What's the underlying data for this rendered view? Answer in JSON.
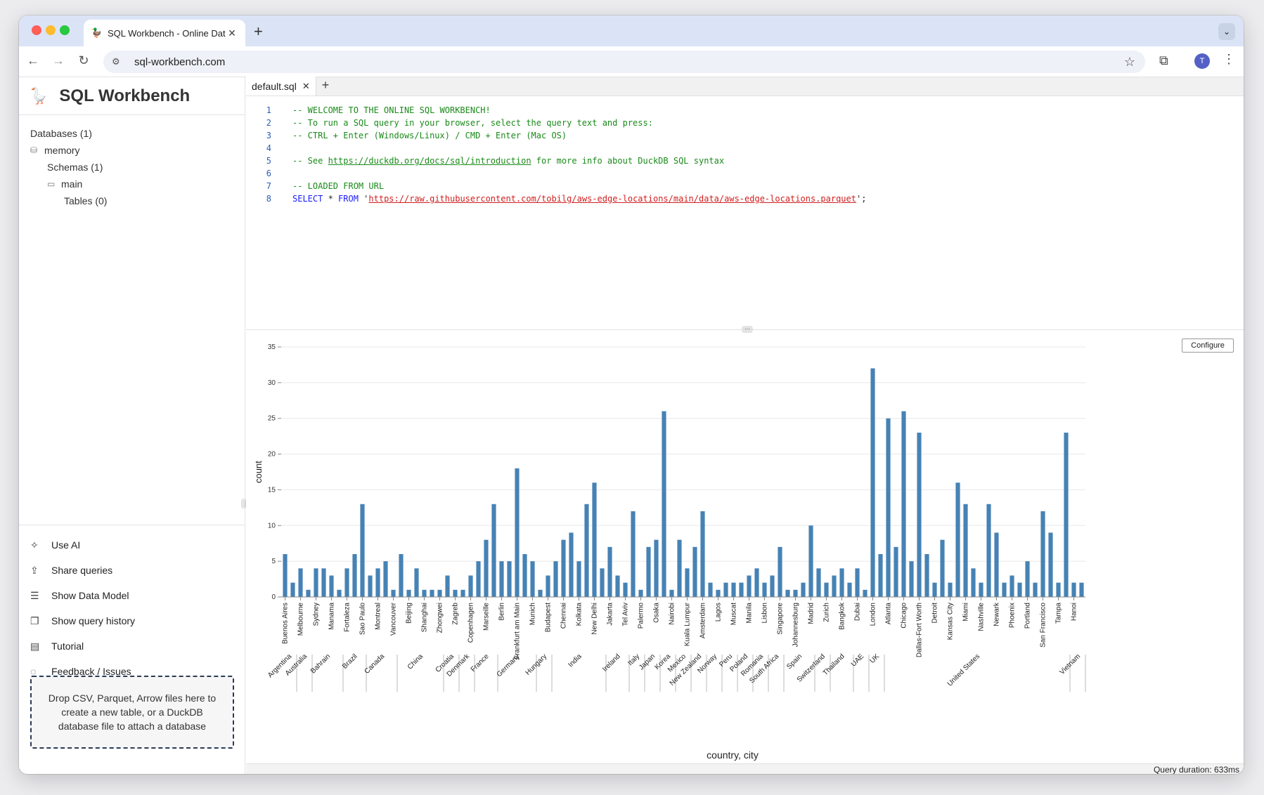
{
  "browser": {
    "tab_title": "SQL Workbench - Online Data",
    "url": "sql-workbench.com"
  },
  "sidebar": {
    "app_title": "SQL Workbench",
    "tree": {
      "databases": "Databases (1)",
      "memory": "memory",
      "schemas": "Schemas (1)",
      "main": "main",
      "tables": "Tables (0)"
    },
    "actions": [
      {
        "label": "Use AI",
        "icon": "wand-icon"
      },
      {
        "label": "Share queries",
        "icon": "share-icon"
      },
      {
        "label": "Show Data Model",
        "icon": "data-model-icon"
      },
      {
        "label": "Show query history",
        "icon": "history-icon"
      },
      {
        "label": "Tutorial",
        "icon": "document-icon"
      },
      {
        "label": "Feedback / Issues",
        "icon": "chat-icon"
      }
    ],
    "dropzone": "Drop CSV, Parquet, Arrow files here to create a new table, or a DuckDB database file to attach a database"
  },
  "editor": {
    "tab": "default.sql",
    "lines": {
      "l1": "-- WELCOME TO THE ONLINE SQL WORKBENCH!",
      "l2": "-- To run a SQL query in your browser, select the query text and press:",
      "l3": "-- CTRL + Enter (Windows/Linux) / CMD + Enter (Mac OS)",
      "l5a": "-- See ",
      "l5link": "https://duckdb.org/docs/sql/introduction",
      "l5b": " for more info about DuckDB SQL syntax",
      "l7": "-- LOADED FROM URL",
      "l8kw1": "SELECT",
      "l8mid": " * ",
      "l8kw2": "FROM",
      "l8q1": " '",
      "l8url": "https://raw.githubusercontent.com/tobilg/aws-edge-locations/main/data/aws-edge-locations.parquet",
      "l8q2": "';"
    }
  },
  "chart": {
    "configure_label": "Configure",
    "bar_color": "#4682b4"
  },
  "status": {
    "duration": "Query duration: 633ms"
  },
  "chart_data": {
    "type": "bar",
    "xlabel": "country, city",
    "ylabel": "count",
    "ylim": [
      0,
      35
    ],
    "yticks": [
      0,
      5,
      10,
      15,
      20,
      25,
      30,
      35
    ],
    "grid": true,
    "values": [
      6,
      2,
      4,
      1,
      4,
      4,
      3,
      1,
      4,
      6,
      13,
      3,
      4,
      5,
      1,
      6,
      1,
      4,
      1,
      1,
      1,
      3,
      1,
      1,
      3,
      5,
      8,
      13,
      5,
      5,
      18,
      6,
      5,
      1,
      3,
      5,
      8,
      9,
      5,
      13,
      16,
      4,
      7,
      3,
      2,
      12,
      1,
      7,
      8,
      26,
      1,
      8,
      4,
      7,
      12,
      2,
      1,
      2,
      2,
      2,
      3,
      4,
      2,
      3,
      7,
      1,
      1,
      2,
      10,
      4,
      2,
      3,
      4,
      2,
      4,
      1,
      32,
      6,
      25,
      7,
      26,
      5,
      23,
      6,
      2,
      8,
      2,
      16,
      13,
      4,
      2,
      13,
      9,
      2,
      3,
      2,
      5,
      2,
      12,
      9,
      2,
      23,
      2,
      2
    ],
    "labeled_cities": [
      {
        "index": 0,
        "city": "Buenos Aires"
      },
      {
        "index": 2,
        "city": "Melbourne"
      },
      {
        "index": 4,
        "city": "Sydney"
      },
      {
        "index": 6,
        "city": "Manama"
      },
      {
        "index": 8,
        "city": "Fortaleza"
      },
      {
        "index": 10,
        "city": "Sao Paulo"
      },
      {
        "index": 12,
        "city": "Montreal"
      },
      {
        "index": 14,
        "city": "Vancouver"
      },
      {
        "index": 16,
        "city": "Beijing"
      },
      {
        "index": 18,
        "city": "Shanghai"
      },
      {
        "index": 20,
        "city": "Zhongwei"
      },
      {
        "index": 22,
        "city": "Zagreb"
      },
      {
        "index": 24,
        "city": "Copenhagen"
      },
      {
        "index": 26,
        "city": "Marseille"
      },
      {
        "index": 28,
        "city": "Berlin"
      },
      {
        "index": 30,
        "city": "Frankfurt am Main"
      },
      {
        "index": 32,
        "city": "Munich"
      },
      {
        "index": 34,
        "city": "Budapest"
      },
      {
        "index": 36,
        "city": "Chennai"
      },
      {
        "index": 38,
        "city": "Kolkata"
      },
      {
        "index": 40,
        "city": "New Delhi"
      },
      {
        "index": 42,
        "city": "Jakarta"
      },
      {
        "index": 44,
        "city": "Tel Aviv"
      },
      {
        "index": 46,
        "city": "Palermo"
      },
      {
        "index": 48,
        "city": "Osaka"
      },
      {
        "index": 50,
        "city": "Nairobi"
      },
      {
        "index": 52,
        "city": "Kuala Lumpur"
      },
      {
        "index": 54,
        "city": "Amsterdam"
      },
      {
        "index": 56,
        "city": "Lagos"
      },
      {
        "index": 58,
        "city": "Muscat"
      },
      {
        "index": 60,
        "city": "Manila"
      },
      {
        "index": 62,
        "city": "Lisbon"
      },
      {
        "index": 64,
        "city": "Singapore"
      },
      {
        "index": 66,
        "city": "Johannesburg"
      },
      {
        "index": 68,
        "city": "Madrid"
      },
      {
        "index": 70,
        "city": "Zurich"
      },
      {
        "index": 72,
        "city": "Bangkok"
      },
      {
        "index": 74,
        "city": "Dubai"
      },
      {
        "index": 76,
        "city": "London"
      },
      {
        "index": 78,
        "city": "Atlanta"
      },
      {
        "index": 80,
        "city": "Chicago"
      },
      {
        "index": 82,
        "city": "Dallas-Fort Worth"
      },
      {
        "index": 84,
        "city": "Detroit"
      },
      {
        "index": 86,
        "city": "Kansas City"
      },
      {
        "index": 88,
        "city": "Miami"
      },
      {
        "index": 90,
        "city": "Nashville"
      },
      {
        "index": 92,
        "city": "Newark"
      },
      {
        "index": 94,
        "city": "Phoenix"
      },
      {
        "index": 96,
        "city": "Portland"
      },
      {
        "index": 98,
        "city": "San Francisco"
      },
      {
        "index": 100,
        "city": "Tampa"
      },
      {
        "index": 102,
        "city": "Hanoi"
      }
    ],
    "countries": [
      {
        "name": "Argentina",
        "start": 0,
        "end": 1
      },
      {
        "name": "Australia",
        "start": 2,
        "end": 3
      },
      {
        "name": "Bahrain",
        "start": 4,
        "end": 7
      },
      {
        "name": "Brazil",
        "start": 8,
        "end": 10
      },
      {
        "name": "Canada",
        "start": 11,
        "end": 14
      },
      {
        "name": "China",
        "start": 15,
        "end": 20
      },
      {
        "name": "Croatia",
        "start": 21,
        "end": 22
      },
      {
        "name": "Denmark",
        "start": 23,
        "end": 24
      },
      {
        "name": "France",
        "start": 25,
        "end": 27
      },
      {
        "name": "Germany",
        "start": 28,
        "end": 32
      },
      {
        "name": "Hungary",
        "start": 33,
        "end": 34
      },
      {
        "name": "India",
        "start": 35,
        "end": 41
      },
      {
        "name": "Ireland",
        "start": 42,
        "end": 44
      },
      {
        "name": "Italy",
        "start": 45,
        "end": 46
      },
      {
        "name": "Japan",
        "start": 47,
        "end": 48
      },
      {
        "name": "Korea",
        "start": 49,
        "end": 50
      },
      {
        "name": "Mexico",
        "start": 51,
        "end": 52
      },
      {
        "name": "New Zealand",
        "start": 53,
        "end": 54
      },
      {
        "name": "Norway",
        "start": 55,
        "end": 56
      },
      {
        "name": "Peru",
        "start": 57,
        "end": 58
      },
      {
        "name": "Poland",
        "start": 59,
        "end": 60
      },
      {
        "name": "Romania",
        "start": 61,
        "end": 62
      },
      {
        "name": "South Africa",
        "start": 63,
        "end": 64
      },
      {
        "name": "Spain",
        "start": 65,
        "end": 68
      },
      {
        "name": "Switzerland",
        "start": 69,
        "end": 70
      },
      {
        "name": "Thailand",
        "start": 71,
        "end": 73
      },
      {
        "name": "UAE",
        "start": 74,
        "end": 75
      },
      {
        "name": "UK",
        "start": 76,
        "end": 77
      },
      {
        "name": "United States",
        "start": 78,
        "end": 101
      },
      {
        "name": "Vietnam",
        "start": 102,
        "end": 103
      }
    ]
  }
}
